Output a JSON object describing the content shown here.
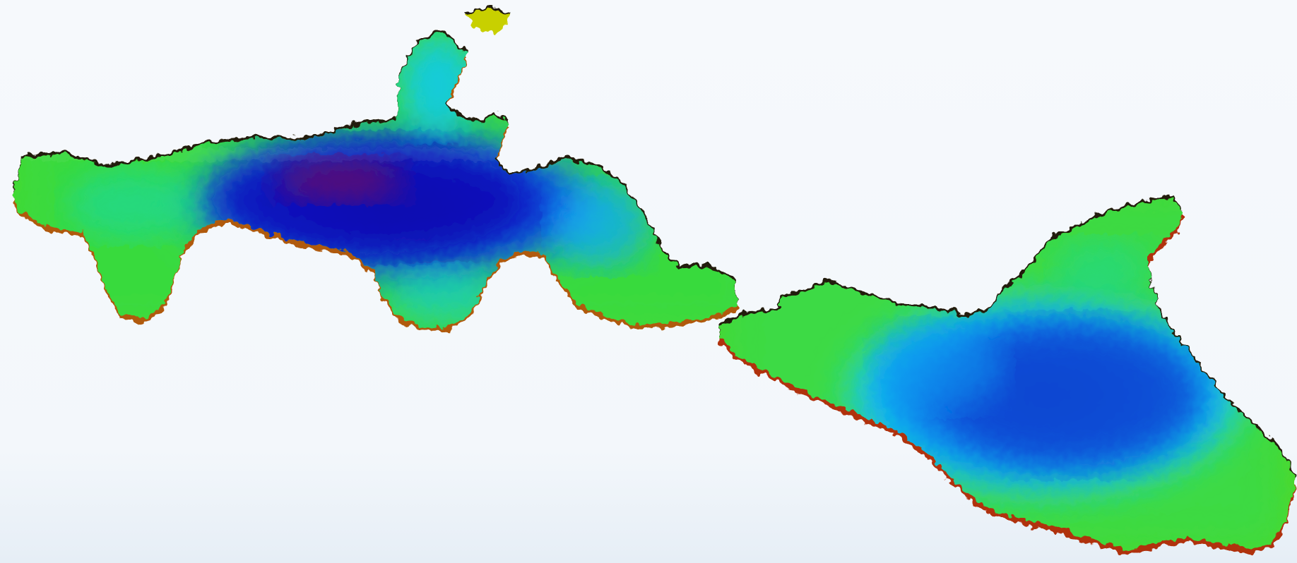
{
  "view": {
    "background_color": "#f4f8fc",
    "rendering": "3d-shaded-surface",
    "colormap": [
      "#7a0a5a",
      "#1a0aa8",
      "#0a38d8",
      "#10c8ff",
      "#14e070",
      "#6ae010",
      "#b0e000",
      "#d0a000",
      "#c03000"
    ],
    "rim_color": "#241a08"
  },
  "basins": [
    {
      "id": "west-basin",
      "depth_color": "#0c10b0"
    },
    {
      "id": "east-basin",
      "depth_color": "#0a4cd0"
    }
  ]
}
